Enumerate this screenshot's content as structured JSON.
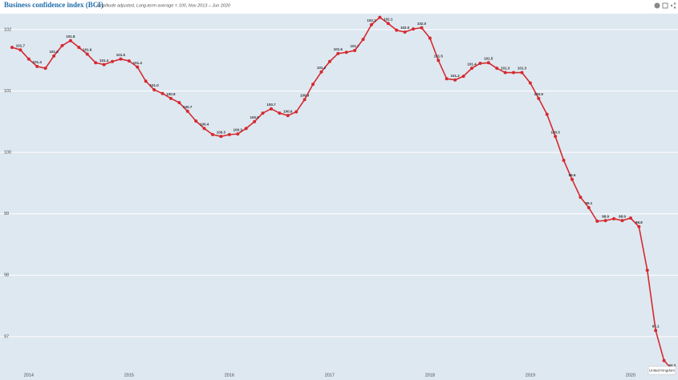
{
  "chart_data": {
    "type": "line",
    "title": "Business confidence index (BCI)",
    "subtitle": "Amplitude adjusted, Long-term average = 100, Nov 2013 – Jun 2020",
    "categories": [
      null,
      null,
      "2014",
      null,
      null,
      null,
      null,
      null,
      null,
      null,
      null,
      null,
      null,
      null,
      "2015",
      null,
      null,
      null,
      null,
      null,
      null,
      null,
      null,
      null,
      null,
      null,
      "2016",
      null,
      null,
      null,
      null,
      null,
      null,
      null,
      null,
      null,
      null,
      null,
      "2017",
      null,
      null,
      null,
      null,
      null,
      null,
      null,
      null,
      null,
      null,
      null,
      "2018",
      null,
      null,
      null,
      null,
      null,
      null,
      null,
      null,
      null,
      null,
      null,
      "2019",
      null,
      null,
      null,
      null,
      null,
      null,
      null,
      null,
      null,
      null,
      null,
      "2020",
      null,
      null,
      null,
      null,
      null
    ],
    "series": [
      {
        "name": "United Kingdom",
        "color": "#d42a2f",
        "values": [
          101.71,
          101.67,
          101.52,
          101.4,
          101.37,
          101.57,
          101.74,
          101.82,
          101.71,
          101.6,
          101.46,
          101.43,
          101.48,
          101.52,
          101.49,
          101.39,
          101.16,
          101.02,
          100.96,
          100.88,
          100.81,
          100.67,
          100.51,
          100.39,
          100.29,
          100.26,
          100.29,
          100.3,
          100.39,
          100.5,
          100.64,
          100.71,
          100.64,
          100.6,
          100.66,
          100.86,
          101.11,
          101.31,
          101.48,
          101.61,
          101.63,
          101.66,
          101.84,
          102.08,
          102.2,
          102.1,
          101.99,
          101.96,
          102.01,
          102.03,
          101.86,
          101.5,
          101.2,
          101.18,
          101.24,
          101.37,
          101.45,
          101.46,
          101.37,
          101.3,
          101.3,
          101.3,
          101.13,
          100.88,
          100.62,
          100.26,
          99.87,
          99.56,
          99.27,
          99.1,
          98.88,
          98.89,
          98.92,
          98.89,
          98.93,
          98.79,
          98.08,
          97.1,
          96.61,
          96.46
        ],
        "value_labels": [
          null,
          "101.7",
          null,
          "101.4",
          null,
          "101.6",
          null,
          "101.8",
          null,
          "101.6",
          null,
          "101.4",
          null,
          "101.5",
          null,
          "101.4",
          null,
          "101.0",
          null,
          "100.9",
          null,
          "100.7",
          null,
          "100.4",
          null,
          "100.3",
          null,
          "100.3",
          null,
          "100.5",
          null,
          "100.7",
          null,
          "100.6",
          null,
          "100.9",
          null,
          "101.3",
          null,
          "101.6",
          null,
          "101.7",
          null,
          "102.1",
          null,
          "102.1",
          null,
          "102.0",
          null,
          "102.0",
          null,
          "101.5",
          null,
          "101.2",
          null,
          "101.4",
          null,
          "101.5",
          null,
          "101.3",
          null,
          "101.3",
          null,
          "100.9",
          null,
          "100.3",
          null,
          "99.6",
          null,
          "99.1",
          null,
          "98.9",
          null,
          "98.9",
          null,
          "98.8",
          null,
          "97.1",
          null,
          "96.5"
        ]
      }
    ],
    "ylim": [
      96.45,
      102.26
    ],
    "yticks": [
      97,
      98,
      99,
      100,
      101,
      102
    ],
    "grid": true
  }
}
